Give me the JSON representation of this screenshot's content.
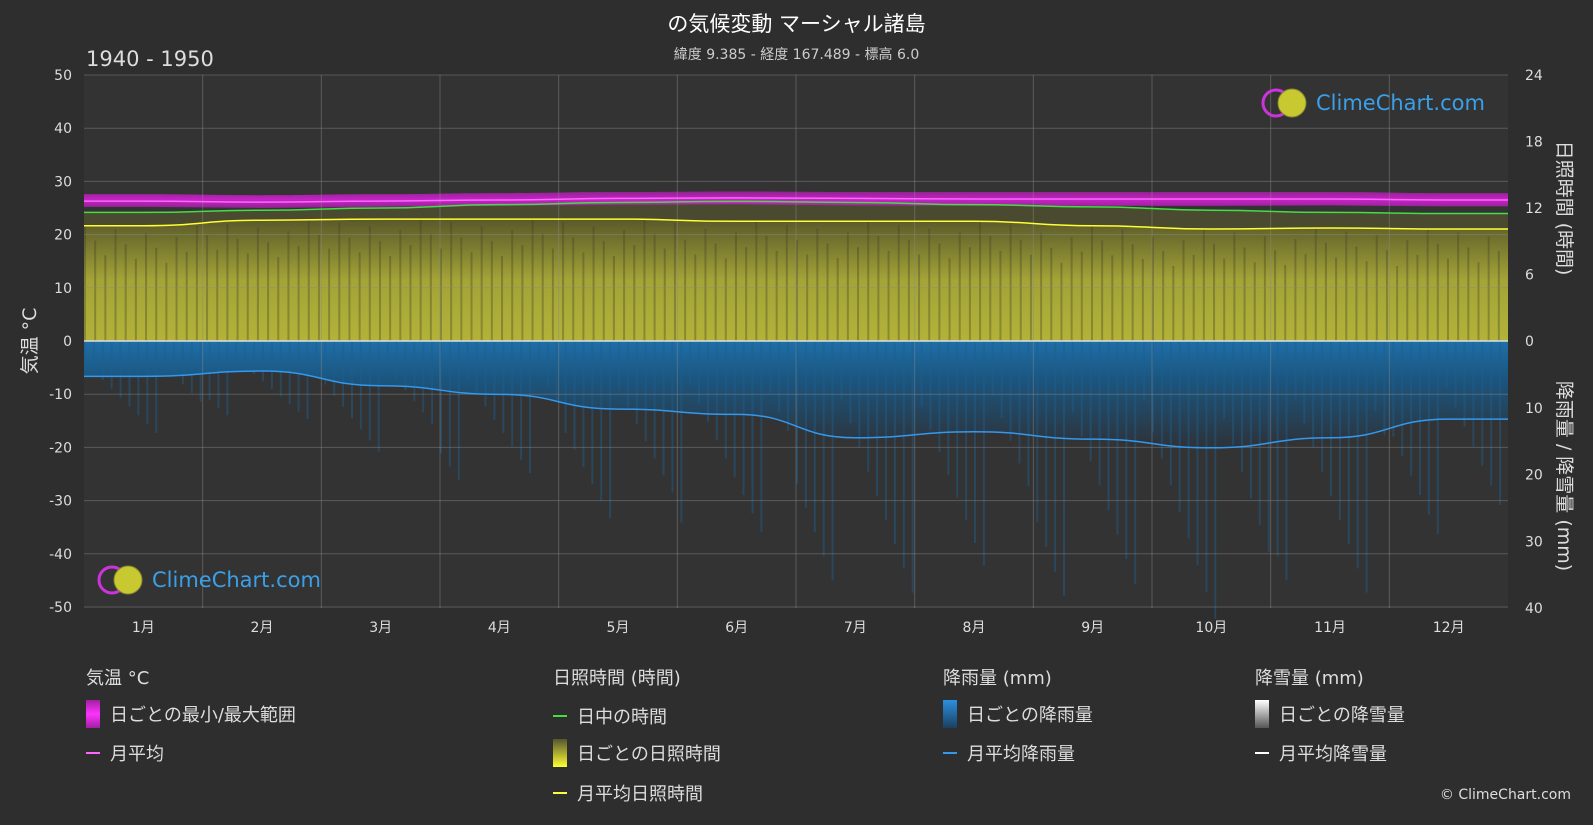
{
  "title": "の気候変動 マーシャル諸島",
  "subtitle": "緯度 9.385 - 経度 167.489 - 標高 6.0",
  "period": "1940 - 1950",
  "logo_text": "ClimeChart.com",
  "copyright": "© ClimeChart.com",
  "colors": {
    "background": "#2e2e2e",
    "temp_range": "#e020e0",
    "temp_mean": "#ff66ff",
    "daylight": "#44dd44",
    "sunshine_fill": "#b5b52c",
    "sunshine_mean": "#ffff33",
    "rain_fill": "#1f78b4",
    "rain_mean": "#3399ee",
    "snow_mean": "#ffffff",
    "accent": "#3aa0e8"
  },
  "chart_data": {
    "type": "area",
    "months": [
      "1月",
      "2月",
      "3月",
      "4月",
      "5月",
      "6月",
      "7月",
      "8月",
      "9月",
      "10月",
      "11月",
      "12月"
    ],
    "axes": {
      "left": {
        "label": "気温 °C",
        "range": [
          -50,
          50
        ],
        "ticks": [
          50,
          40,
          30,
          20,
          10,
          0,
          -10,
          -20,
          -30,
          -40,
          -50
        ]
      },
      "right_top": {
        "label": "日照時間 (時間)",
        "range": [
          0,
          24
        ],
        "ticks": [
          24,
          18,
          12,
          6,
          0
        ]
      },
      "right_bottom": {
        "label": "降雨量 / 降雪量 (mm)",
        "range": [
          0,
          40
        ],
        "ticks": [
          0,
          10,
          20,
          30,
          40
        ]
      }
    },
    "grid": true,
    "series": [
      {
        "name": "月平均",
        "unit": "°C",
        "values": [
          26.3,
          26.1,
          26.3,
          26.5,
          26.8,
          26.9,
          26.8,
          26.7,
          26.7,
          26.7,
          26.7,
          26.5
        ]
      },
      {
        "name": "日ごとの最小/最大範囲",
        "unit": "°C",
        "min": [
          25.2,
          25.0,
          25.2,
          25.4,
          25.6,
          25.7,
          25.5,
          25.4,
          25.4,
          25.4,
          25.5,
          25.3
        ],
        "max": [
          27.6,
          27.4,
          27.6,
          27.8,
          28.0,
          28.1,
          28.0,
          28.0,
          28.0,
          28.0,
          28.0,
          27.8
        ]
      },
      {
        "name": "日中の時間",
        "unit": "時間",
        "values": [
          11.6,
          11.8,
          12.0,
          12.3,
          12.5,
          12.6,
          12.5,
          12.3,
          12.1,
          11.8,
          11.6,
          11.5
        ]
      },
      {
        "name": "月平均日照時間",
        "unit": "時間",
        "values": [
          10.4,
          10.9,
          11.0,
          11.0,
          11.0,
          10.8,
          10.8,
          10.8,
          10.4,
          10.1,
          10.2,
          10.1
        ]
      },
      {
        "name": "月平均降雨量",
        "unit": "mm",
        "values": [
          5.3,
          4.5,
          6.7,
          8.0,
          10.2,
          11.0,
          14.5,
          13.6,
          14.7,
          16.0,
          14.5,
          11.7
        ]
      },
      {
        "name": "月平均降雪量",
        "unit": "mm",
        "values": [
          0,
          0,
          0,
          0,
          0,
          0,
          0,
          0,
          0,
          0,
          0,
          0
        ]
      }
    ]
  },
  "legend": {
    "groups": [
      {
        "header": "気温 °C",
        "items": [
          "日ごとの最小/最大範囲",
          "月平均"
        ]
      },
      {
        "header": "日照時間 (時間)",
        "items": [
          "日中の時間",
          "日ごとの日照時間",
          "月平均日照時間"
        ]
      },
      {
        "header": "降雨量 (mm)",
        "items": [
          "日ごとの降雨量",
          "月平均降雨量"
        ]
      },
      {
        "header": "降雪量 (mm)",
        "items": [
          "日ごとの降雪量",
          "月平均降雪量"
        ]
      }
    ]
  }
}
